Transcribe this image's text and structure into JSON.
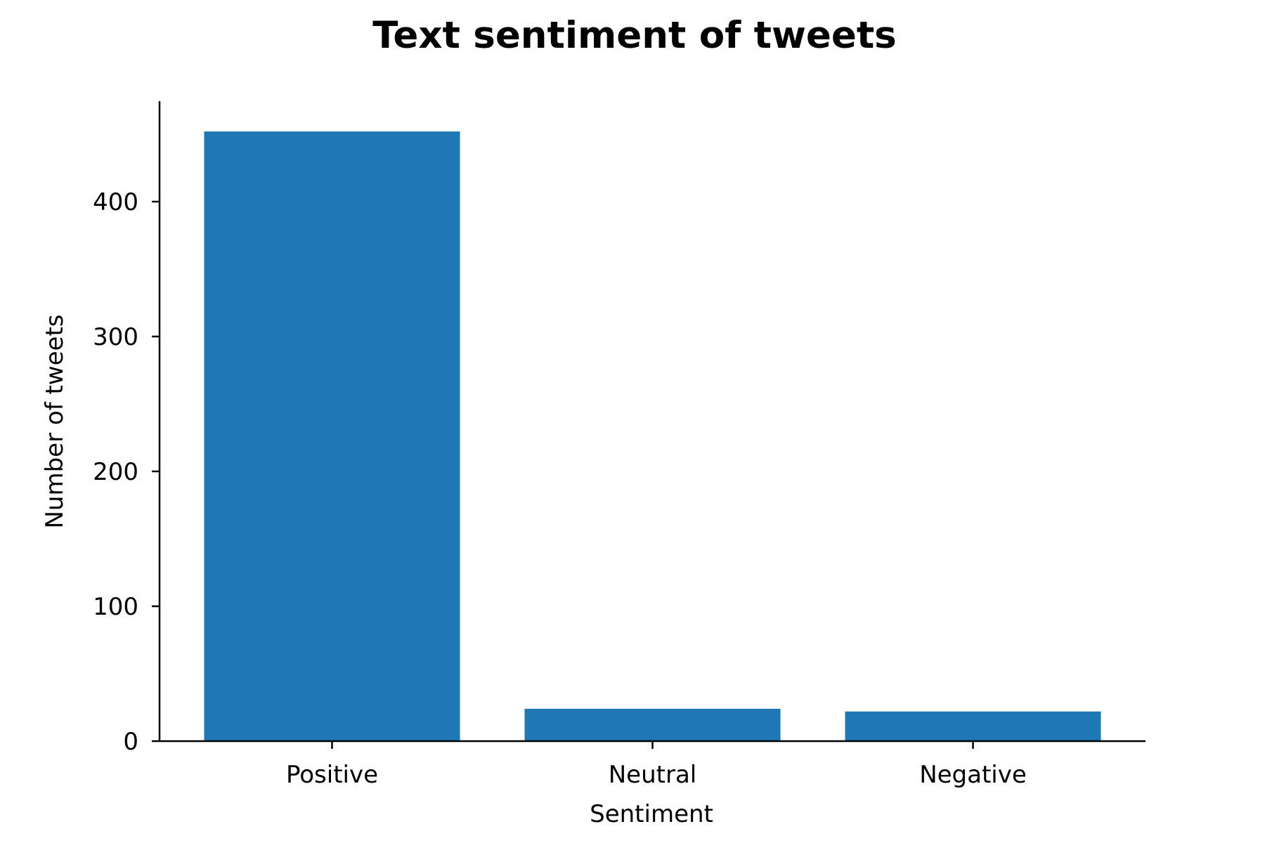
{
  "chart_data": {
    "type": "bar",
    "title": "Text sentiment of tweets",
    "xlabel": "Sentiment",
    "ylabel": "Number of tweets",
    "categories": [
      "Positive",
      "Neutral",
      "Negative"
    ],
    "values": [
      452,
      24,
      22
    ],
    "ylim": [
      0,
      475
    ],
    "yticks": [
      0,
      100,
      200,
      300,
      400
    ],
    "grid": false,
    "bar_color": "#1f77b4"
  }
}
